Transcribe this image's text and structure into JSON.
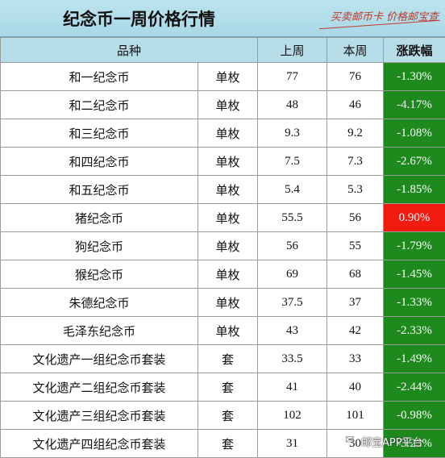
{
  "header": {
    "title": "纪念币一周价格行情",
    "slogan": "买卖邮币卡 价格邮宝查"
  },
  "columns": [
    "品种",
    "上周",
    "本周",
    "涨跌幅"
  ],
  "rows": [
    {
      "name": "和一纪念币",
      "unit": "单枚",
      "last": "77",
      "this": "76",
      "change": "-1.30%",
      "dir": "down"
    },
    {
      "name": "和二纪念币",
      "unit": "单枚",
      "last": "48",
      "this": "46",
      "change": "-4.17%",
      "dir": "down"
    },
    {
      "name": "和三纪念币",
      "unit": "单枚",
      "last": "9.3",
      "this": "9.2",
      "change": "-1.08%",
      "dir": "down"
    },
    {
      "name": "和四纪念币",
      "unit": "单枚",
      "last": "7.5",
      "this": "7.3",
      "change": "-2.67%",
      "dir": "down"
    },
    {
      "name": "和五纪念币",
      "unit": "单枚",
      "last": "5.4",
      "this": "5.3",
      "change": "-1.85%",
      "dir": "down"
    },
    {
      "name": "猪纪念币",
      "unit": "单枚",
      "last": "55.5",
      "this": "56",
      "change": "0.90%",
      "dir": "up"
    },
    {
      "name": "狗纪念币",
      "unit": "单枚",
      "last": "56",
      "this": "55",
      "change": "-1.79%",
      "dir": "down"
    },
    {
      "name": "猴纪念币",
      "unit": "单枚",
      "last": "69",
      "this": "68",
      "change": "-1.45%",
      "dir": "down"
    },
    {
      "name": "朱德纪念币",
      "unit": "单枚",
      "last": "37.5",
      "this": "37",
      "change": "-1.33%",
      "dir": "down"
    },
    {
      "name": "毛泽东纪念币",
      "unit": "单枚",
      "last": "43",
      "this": "42",
      "change": "-2.33%",
      "dir": "down"
    },
    {
      "name": "文化遗产一组纪念币套装",
      "unit": "套",
      "last": "33.5",
      "this": "33",
      "change": "-1.49%",
      "dir": "down"
    },
    {
      "name": "文化遗产二组纪念币套装",
      "unit": "套",
      "last": "41",
      "this": "40",
      "change": "-2.44%",
      "dir": "down"
    },
    {
      "name": "文化遗产三组纪念币套装",
      "unit": "套",
      "last": "102",
      "this": "101",
      "change": "-0.98%",
      "dir": "down"
    },
    {
      "name": "文化遗产四组纪念币套装",
      "unit": "套",
      "last": "31",
      "this": "30",
      "change": "-3.23%",
      "dir": "down"
    }
  ],
  "colors": {
    "down": "#1e8a1e",
    "up": "#f21b10",
    "header": "#b7dde9"
  },
  "watermark": "邮宝APP平台"
}
